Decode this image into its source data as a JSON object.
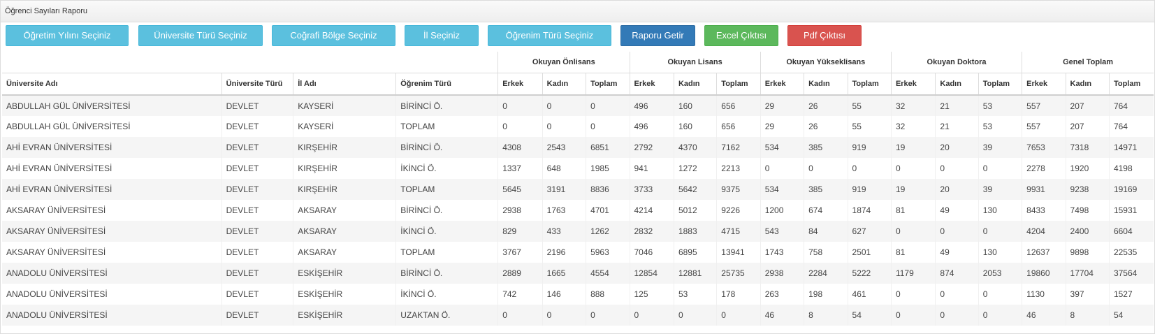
{
  "panel_title": "Öğrenci Sayıları Raporu",
  "buttons": {
    "ogretim_yili": "Öğretim Yılını Seçiniz",
    "universite_turu": "Üniversite Türü Seçiniz",
    "cografi_bolge": "Coğrafi Bölge Seçiniz",
    "il": "İl Seçiniz",
    "ogrenim_turu": "Öğrenim Türü Seçiniz",
    "raporu_getir": "Raporu Getir",
    "excel": "Excel Çıktısı",
    "pdf": "Pdf Çıktısı"
  },
  "groups": [
    "Okuyan Önlisans",
    "Okuyan Lisans",
    "Okuyan Yükseklisans",
    "Okuyan Doktora",
    "Genel Toplam"
  ],
  "headers": [
    "Üniversite Adı",
    "Üniversite Türü",
    "İl Adı",
    "Öğrenim Türü",
    "Erkek",
    "Kadın",
    "Toplam",
    "Erkek",
    "Kadın",
    "Toplam",
    "Erkek",
    "Kadın",
    "Toplam",
    "Erkek",
    "Kadın",
    "Toplam",
    "Erkek",
    "Kadın",
    "Toplam"
  ],
  "rows": [
    [
      "ABDULLAH GÜL ÜNİVERSİTESİ",
      "DEVLET",
      "KAYSERİ",
      "BİRİNCİ Ö.",
      "0",
      "0",
      "0",
      "496",
      "160",
      "656",
      "29",
      "26",
      "55",
      "32",
      "21",
      "53",
      "557",
      "207",
      "764"
    ],
    [
      "ABDULLAH GÜL ÜNİVERSİTESİ",
      "DEVLET",
      "KAYSERİ",
      "TOPLAM",
      "0",
      "0",
      "0",
      "496",
      "160",
      "656",
      "29",
      "26",
      "55",
      "32",
      "21",
      "53",
      "557",
      "207",
      "764"
    ],
    [
      "AHİ EVRAN ÜNİVERSİTESİ",
      "DEVLET",
      "KIRŞEHİR",
      "BİRİNCİ Ö.",
      "4308",
      "2543",
      "6851",
      "2792",
      "4370",
      "7162",
      "534",
      "385",
      "919",
      "19",
      "20",
      "39",
      "7653",
      "7318",
      "14971"
    ],
    [
      "AHİ EVRAN ÜNİVERSİTESİ",
      "DEVLET",
      "KIRŞEHİR",
      "İKİNCİ Ö.",
      "1337",
      "648",
      "1985",
      "941",
      "1272",
      "2213",
      "0",
      "0",
      "0",
      "0",
      "0",
      "0",
      "2278",
      "1920",
      "4198"
    ],
    [
      "AHİ EVRAN ÜNİVERSİTESİ",
      "DEVLET",
      "KIRŞEHİR",
      "TOPLAM",
      "5645",
      "3191",
      "8836",
      "3733",
      "5642",
      "9375",
      "534",
      "385",
      "919",
      "19",
      "20",
      "39",
      "9931",
      "9238",
      "19169"
    ],
    [
      "AKSARAY ÜNİVERSİTESİ",
      "DEVLET",
      "AKSARAY",
      "BİRİNCİ Ö.",
      "2938",
      "1763",
      "4701",
      "4214",
      "5012",
      "9226",
      "1200",
      "674",
      "1874",
      "81",
      "49",
      "130",
      "8433",
      "7498",
      "15931"
    ],
    [
      "AKSARAY ÜNİVERSİTESİ",
      "DEVLET",
      "AKSARAY",
      "İKİNCİ Ö.",
      "829",
      "433",
      "1262",
      "2832",
      "1883",
      "4715",
      "543",
      "84",
      "627",
      "0",
      "0",
      "0",
      "4204",
      "2400",
      "6604"
    ],
    [
      "AKSARAY ÜNİVERSİTESİ",
      "DEVLET",
      "AKSARAY",
      "TOPLAM",
      "3767",
      "2196",
      "5963",
      "7046",
      "6895",
      "13941",
      "1743",
      "758",
      "2501",
      "81",
      "49",
      "130",
      "12637",
      "9898",
      "22535"
    ],
    [
      "ANADOLU ÜNİVERSİTESİ",
      "DEVLET",
      "ESKİŞEHİR",
      "BİRİNCİ Ö.",
      "2889",
      "1665",
      "4554",
      "12854",
      "12881",
      "25735",
      "2938",
      "2284",
      "5222",
      "1179",
      "874",
      "2053",
      "19860",
      "17704",
      "37564"
    ],
    [
      "ANADOLU ÜNİVERSİTESİ",
      "DEVLET",
      "ESKİŞEHİR",
      "İKİNCİ Ö.",
      "742",
      "146",
      "888",
      "125",
      "53",
      "178",
      "263",
      "198",
      "461",
      "0",
      "0",
      "0",
      "1130",
      "397",
      "1527"
    ],
    [
      "ANADOLU ÜNİVERSİTESİ",
      "DEVLET",
      "ESKİŞEHİR",
      "UZAKTAN Ö.",
      "0",
      "0",
      "0",
      "0",
      "0",
      "0",
      "46",
      "8",
      "54",
      "0",
      "0",
      "0",
      "46",
      "8",
      "54"
    ]
  ]
}
